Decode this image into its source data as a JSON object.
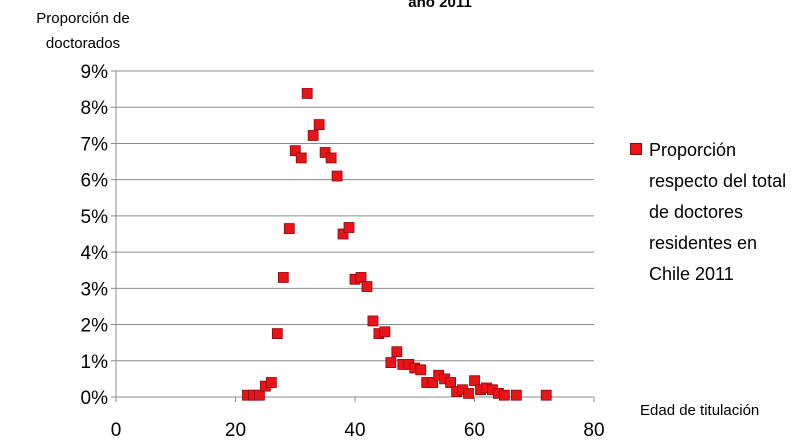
{
  "chart_data": {
    "type": "scatter",
    "title": "año 2011",
    "ylabel": "Proporción de doctorados",
    "xlabel": "Edad de titulación",
    "xlim": [
      0,
      80
    ],
    "ylim": [
      0,
      0.09
    ],
    "x_ticks": [
      "0",
      "20",
      "40",
      "60",
      "80"
    ],
    "y_ticks": [
      "0%",
      "1%",
      "2%",
      "3%",
      "4%",
      "5%",
      "6%",
      "7%",
      "8%",
      "9%"
    ],
    "grid": true,
    "legend_position": "right",
    "series": [
      {
        "name": "Proporción respecto del total de doctores residentes en Chile 2011",
        "color": "#e8141a",
        "marker": "square",
        "points": [
          [
            22,
            0.0005
          ],
          [
            23,
            0.0005
          ],
          [
            24,
            0.0005
          ],
          [
            25,
            0.003
          ],
          [
            26,
            0.004
          ],
          [
            27,
            0.0175
          ],
          [
            28,
            0.033
          ],
          [
            29,
            0.0465
          ],
          [
            30,
            0.068
          ],
          [
            31,
            0.066
          ],
          [
            32,
            0.0838
          ],
          [
            33,
            0.0722
          ],
          [
            34,
            0.0752
          ],
          [
            35,
            0.0675
          ],
          [
            36,
            0.066
          ],
          [
            37,
            0.061
          ],
          [
            38,
            0.045
          ],
          [
            39,
            0.0468
          ],
          [
            40,
            0.0325
          ],
          [
            41,
            0.033
          ],
          [
            42,
            0.0305
          ],
          [
            43,
            0.021
          ],
          [
            44,
            0.0175
          ],
          [
            45,
            0.018
          ],
          [
            46,
            0.0095
          ],
          [
            47,
            0.0125
          ],
          [
            48,
            0.009
          ],
          [
            49,
            0.009
          ],
          [
            50,
            0.008
          ],
          [
            51,
            0.0075
          ],
          [
            52,
            0.004
          ],
          [
            53,
            0.004
          ],
          [
            54,
            0.006
          ],
          [
            55,
            0.005
          ],
          [
            56,
            0.004
          ],
          [
            57,
            0.0015
          ],
          [
            58,
            0.002
          ],
          [
            59,
            0.001
          ],
          [
            60,
            0.0045
          ],
          [
            61,
            0.002
          ],
          [
            62,
            0.0025
          ],
          [
            63,
            0.002
          ],
          [
            64,
            0.001
          ],
          [
            65,
            0.0005
          ],
          [
            67,
            0.0005
          ],
          [
            72,
            0.0005
          ]
        ]
      }
    ]
  }
}
